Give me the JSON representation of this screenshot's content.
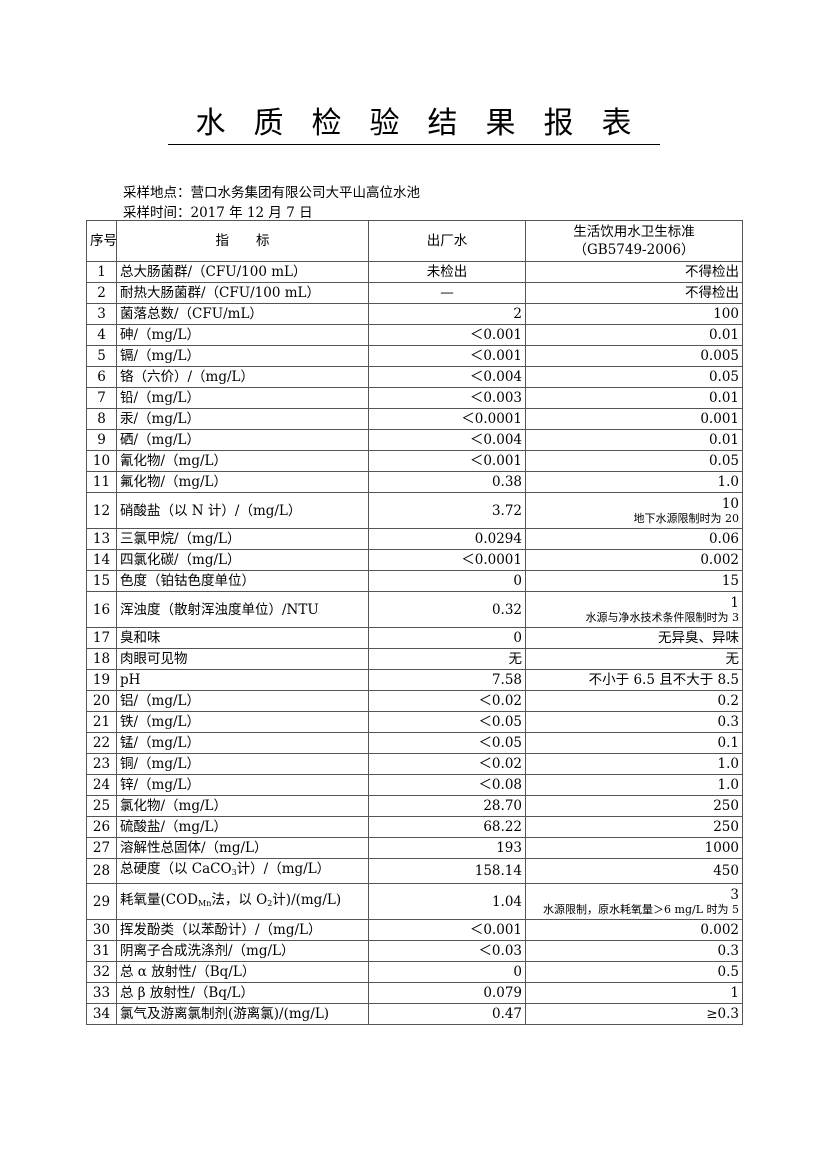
{
  "title": "水质检验结果报表",
  "sampling_location": "采样地点：营口水务集团有限公司大平山高位水池",
  "sampling_time": "采样时间：2017 年 12 月 7 日",
  "headers": {
    "no": "序号",
    "indicator": "指　　标",
    "outlet": "出厂水",
    "standard_line1": "生活饮用水卫生标准",
    "standard_line2": "（GB5749-2006）"
  },
  "rows": [
    {
      "no": "1",
      "label": [
        {
          "t": "总大肠菌群/（CFU/100 mL）"
        }
      ],
      "value": "未检出",
      "value_align": "center",
      "std": "不得检出"
    },
    {
      "no": "2",
      "label": [
        {
          "t": "耐热大肠菌群/（CFU/100 mL）"
        }
      ],
      "value": "—",
      "value_align": "center",
      "std": "不得检出"
    },
    {
      "no": "3",
      "label": [
        {
          "t": "菌落总数/（CFU/mL）"
        }
      ],
      "value": "2",
      "std": "100"
    },
    {
      "no": "4",
      "label": [
        {
          "t": "砷/（mg/L）"
        }
      ],
      "value": "＜0.001",
      "std": "0.01"
    },
    {
      "no": "5",
      "label": [
        {
          "t": "镉/（mg/L）"
        }
      ],
      "value": "＜0.001",
      "std": "0.005"
    },
    {
      "no": "6",
      "label": [
        {
          "t": "铬（六价）/（mg/L）"
        }
      ],
      "value": "＜0.004",
      "std": "0.05"
    },
    {
      "no": "7",
      "label": [
        {
          "t": "铅/（mg/L）"
        }
      ],
      "value": "＜0.003",
      "std": "0.01"
    },
    {
      "no": "8",
      "label": [
        {
          "t": "汞/（mg/L）"
        }
      ],
      "value": "＜0.0001",
      "std": "0.001"
    },
    {
      "no": "9",
      "label": [
        {
          "t": "硒/（mg/L）"
        }
      ],
      "value": "＜0.004",
      "std": "0.01"
    },
    {
      "no": "10",
      "label": [
        {
          "t": "氰化物/（mg/L）"
        }
      ],
      "value": "＜0.001",
      "std": "0.05"
    },
    {
      "no": "11",
      "label": [
        {
          "t": "氟化物/（mg/L）"
        }
      ],
      "value": "0.38",
      "std": "1.0"
    },
    {
      "no": "12",
      "label": [
        {
          "t": "硝酸盐（以 N 计）/（mg/L）"
        }
      ],
      "value": "3.72",
      "std": "10",
      "std_note": "地下水源限制时为 20"
    },
    {
      "no": "13",
      "label": [
        {
          "t": "三氯甲烷/（mg/L）"
        }
      ],
      "value": "0.0294",
      "std": "0.06"
    },
    {
      "no": "14",
      "label": [
        {
          "t": "四氯化碳/（mg/L）"
        }
      ],
      "value": "＜0.0001",
      "std": "0.002"
    },
    {
      "no": "15",
      "label": [
        {
          "t": "色度（铂钴色度单位）"
        }
      ],
      "value": "0",
      "std": "15"
    },
    {
      "no": "16",
      "label": [
        {
          "t": "浑浊度（散射浑浊度单位）/NTU"
        }
      ],
      "value": "0.32",
      "std": "1",
      "std_note": "水源与净水技术条件限制时为 3"
    },
    {
      "no": "17",
      "label": [
        {
          "t": "臭和味"
        }
      ],
      "value": "0",
      "std": "无异臭、异味"
    },
    {
      "no": "18",
      "label": [
        {
          "t": "肉眼可见物"
        }
      ],
      "value": "无",
      "std": "无"
    },
    {
      "no": "19",
      "label": [
        {
          "t": "pH"
        }
      ],
      "value": "7.58",
      "std": "不小于 6.5 且不大于 8.5"
    },
    {
      "no": "20",
      "label": [
        {
          "t": "铝/（mg/L）"
        }
      ],
      "value": "＜0.02",
      "std": "0.2"
    },
    {
      "no": "21",
      "label": [
        {
          "t": "铁/（mg/L）"
        }
      ],
      "value": "＜0.05",
      "std": "0.3"
    },
    {
      "no": "22",
      "label": [
        {
          "t": "锰/（mg/L）"
        }
      ],
      "value": "＜0.05",
      "std": "0.1"
    },
    {
      "no": "23",
      "label": [
        {
          "t": "铜/（mg/L）"
        }
      ],
      "value": "＜0.02",
      "std": "1.0"
    },
    {
      "no": "24",
      "label": [
        {
          "t": "锌/（mg/L）"
        }
      ],
      "value": "＜0.08",
      "std": "1.0"
    },
    {
      "no": "25",
      "label": [
        {
          "t": "氯化物/（mg/L）"
        }
      ],
      "value": "28.70",
      "std": "250"
    },
    {
      "no": "26",
      "label": [
        {
          "t": "硫酸盐/（mg/L）"
        }
      ],
      "value": "68.22",
      "std": "250"
    },
    {
      "no": "27",
      "label": [
        {
          "t": "溶解性总固体/（mg/L）"
        }
      ],
      "value": "193",
      "std": "1000"
    },
    {
      "no": "28",
      "label": [
        {
          "t": "总硬度（以 CaCO"
        },
        {
          "t": "3",
          "sub": true
        },
        {
          "t": "计）/（mg/L）"
        }
      ],
      "value": "158.14",
      "std": "450"
    },
    {
      "no": "29",
      "label": [
        {
          "t": "耗氧量(COD"
        },
        {
          "t": "Mn",
          "sub": true
        },
        {
          "t": "法，以 O"
        },
        {
          "t": "2",
          "sub": true
        },
        {
          "t": "计)/(mg/L)"
        }
      ],
      "value": "1.04",
      "std": "3",
      "std_note": "水源限制，原水耗氧量＞6 mg/L 时为 5"
    },
    {
      "no": "30",
      "label": [
        {
          "t": "挥发酚类（以苯酚计）/（mg/L）"
        }
      ],
      "value": "＜0.001",
      "std": "0.002"
    },
    {
      "no": "31",
      "label": [
        {
          "t": "阴离子合成洗涤剂/（mg/L）"
        }
      ],
      "value": "＜0.03",
      "std": "0.3"
    },
    {
      "no": "32",
      "label": [
        {
          "t": "总 α 放射性/（Bq/L）"
        }
      ],
      "value": "0",
      "std": "0.5"
    },
    {
      "no": "33",
      "label": [
        {
          "t": "总 β 放射性/（Bq/L）"
        }
      ],
      "value": "0.079",
      "std": "1"
    },
    {
      "no": "34",
      "label": [
        {
          "t": "氯气及游离氯制剂(游离氯)/(mg/L)"
        }
      ],
      "value": "0.47",
      "std": "≥0.3"
    }
  ]
}
